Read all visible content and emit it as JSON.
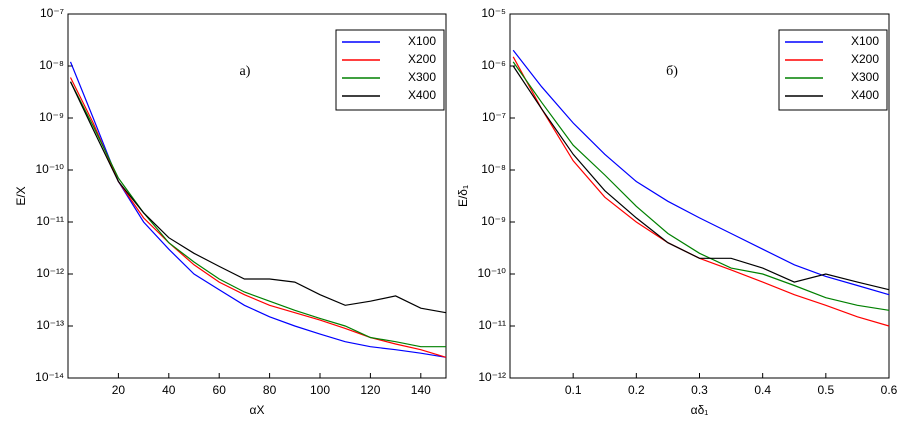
{
  "chart_data": [
    {
      "type": "line",
      "xlabel": "αX",
      "ylabel": "E/X",
      "annotation": "a)",
      "log_y": true,
      "legend": "upper right",
      "xlim": [
        0,
        150
      ],
      "xticks": [
        20,
        40,
        60,
        80,
        100,
        120,
        140
      ],
      "ylim": [
        1e-14,
        1e-07
      ],
      "yticks": [
        {
          "value": 1e-14,
          "label": "10⁻¹⁴"
        },
        {
          "value": 1e-13,
          "label": "10⁻¹³"
        },
        {
          "value": 1e-12,
          "label": "10⁻¹²"
        },
        {
          "value": 1e-11,
          "label": "10⁻¹¹"
        },
        {
          "value": 1e-10,
          "label": "10⁻¹⁰"
        },
        {
          "value": 1e-09,
          "label": "10⁻⁹"
        },
        {
          "value": 1e-08,
          "label": "10⁻⁸"
        },
        {
          "value": 1e-07,
          "label": "10⁻⁷"
        }
      ],
      "x": [
        1,
        10,
        20,
        30,
        40,
        50,
        60,
        70,
        80,
        90,
        100,
        110,
        120,
        130,
        140,
        150
      ],
      "series": [
        {
          "name": "X100",
          "color": "#0000ff",
          "values": [
            1.2e-08,
            1e-09,
            6e-11,
            1e-11,
            3e-12,
            1e-12,
            5e-13,
            2.5e-13,
            1.5e-13,
            1e-13,
            7e-14,
            5e-14,
            4e-14,
            3.5e-14,
            3e-14,
            2.5e-14
          ]
        },
        {
          "name": "X200",
          "color": "#ff0000",
          "values": [
            6e-09,
            8e-10,
            6e-11,
            1.2e-11,
            4e-12,
            1.5e-12,
            7e-13,
            4e-13,
            2.5e-13,
            1.8e-13,
            1.3e-13,
            9e-14,
            6e-14,
            4.5e-14,
            3.5e-14,
            2.5e-14
          ]
        },
        {
          "name": "X300",
          "color": "#008000",
          "values": [
            5e-09,
            7e-10,
            7e-11,
            1.5e-11,
            4e-12,
            1.7e-12,
            8e-13,
            4.5e-13,
            3e-13,
            2e-13,
            1.4e-13,
            1e-13,
            6e-14,
            5e-14,
            4e-14,
            4e-14
          ]
        },
        {
          "name": "X400",
          "color": "#000000",
          "values": [
            5e-09,
            6e-10,
            6e-11,
            1.5e-11,
            5e-12,
            2.5e-12,
            1.4e-12,
            8e-13,
            8e-13,
            7e-13,
            4e-13,
            2.5e-13,
            3e-13,
            3.8e-13,
            2.2e-13,
            1.8e-13
          ]
        }
      ]
    },
    {
      "type": "line",
      "xlabel": "αδ₁",
      "ylabel": "E/δ₁",
      "annotation": "б)",
      "log_y": true,
      "legend": "upper right",
      "xlim": [
        0,
        0.6
      ],
      "xticks": [
        0.1,
        0.2,
        0.3,
        0.4,
        0.5,
        0.6
      ],
      "ylim": [
        1e-12,
        1e-05
      ],
      "yticks": [
        {
          "value": 1e-12,
          "label": "10⁻¹²"
        },
        {
          "value": 1e-11,
          "label": "10⁻¹¹"
        },
        {
          "value": 1e-10,
          "label": "10⁻¹⁰"
        },
        {
          "value": 1e-09,
          "label": "10⁻⁹"
        },
        {
          "value": 1e-08,
          "label": "10⁻⁸"
        },
        {
          "value": 1e-07,
          "label": "10⁻⁷"
        },
        {
          "value": 1e-06,
          "label": "10⁻⁶"
        },
        {
          "value": 1e-05,
          "label": "10⁻⁵"
        }
      ],
      "x": [
        0.005,
        0.05,
        0.1,
        0.15,
        0.2,
        0.25,
        0.3,
        0.35,
        0.4,
        0.45,
        0.5,
        0.55,
        0.6
      ],
      "series": [
        {
          "name": "X100",
          "color": "#0000ff",
          "values": [
            2e-06,
            4e-07,
            8e-08,
            2e-08,
            6e-09,
            2.5e-09,
            1.2e-09,
            6e-10,
            3e-10,
            1.5e-10,
            9e-11,
            6e-11,
            4e-11
          ]
        },
        {
          "name": "X200",
          "color": "#ff0000",
          "values": [
            1.5e-06,
            1.5e-07,
            1.5e-08,
            3e-09,
            1e-09,
            4e-10,
            2e-10,
            1.2e-10,
            7e-11,
            4e-11,
            2.5e-11,
            1.5e-11,
            1e-11
          ]
        },
        {
          "name": "X300",
          "color": "#008000",
          "values": [
            1.2e-06,
            2e-07,
            3e-08,
            8e-09,
            2e-09,
            6e-10,
            2.5e-10,
            1.3e-10,
            1e-10,
            6e-11,
            3.5e-11,
            2.5e-11,
            2e-11
          ]
        },
        {
          "name": "X400",
          "color": "#000000",
          "values": [
            1e-06,
            1.5e-07,
            2e-08,
            4e-09,
            1.2e-09,
            4e-10,
            2e-10,
            2e-10,
            1.3e-10,
            7e-11,
            1e-10,
            7e-11,
            5e-11
          ]
        }
      ]
    }
  ]
}
